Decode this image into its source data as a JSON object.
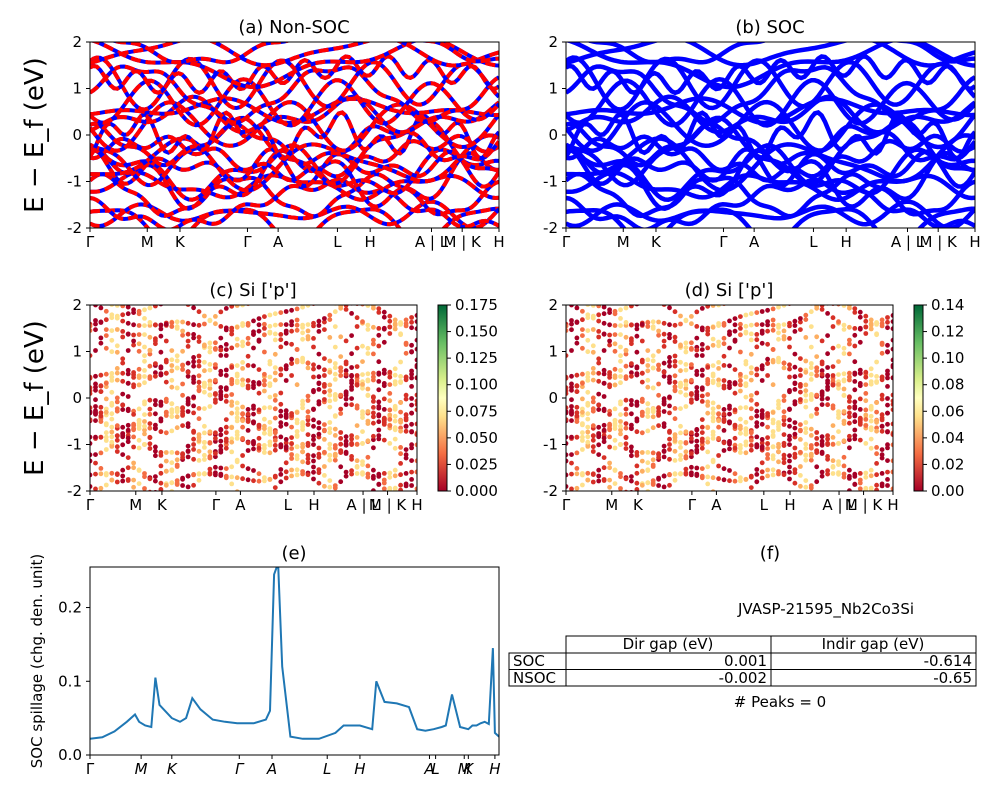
{
  "chart_data": [
    {
      "type": "line",
      "title": "(a) Non-SOC",
      "ylabel": "E − E_f (eV)",
      "ylim": [
        -2,
        2
      ],
      "yticks": [
        -2,
        -1,
        0,
        1,
        2
      ],
      "xtick_labels": [
        "Γ",
        "M",
        "K",
        "Γ",
        "A",
        "L",
        "H",
        "A | L",
        "M | K",
        "H"
      ],
      "series": [
        {
          "color": "#ff0000",
          "values": "spin-up bands, dense multi-band structure in [-2, 2] eV"
        },
        {
          "color": "#0000ff",
          "values": "spin-down bands, overlapping spin-up (dashed)"
        }
      ]
    },
    {
      "type": "line",
      "title": "(b) SOC",
      "ylim": [
        -2,
        2
      ],
      "yticks": [
        -2,
        -1,
        0,
        1,
        2
      ],
      "xtick_labels": [
        "Γ",
        "M",
        "K",
        "Γ",
        "A",
        "L",
        "H",
        "A | L",
        "M | K",
        "H"
      ],
      "series": [
        {
          "color": "#0000ff",
          "values": "SOC bands, dense multi-band structure in [-2, 2] eV"
        }
      ]
    },
    {
      "type": "scatter",
      "title": "(c)  Si ['p']",
      "ylabel": "E − E_f (eV)",
      "ylim": [
        -2,
        2
      ],
      "yticks": [
        -2,
        -1,
        0,
        1,
        2
      ],
      "xtick_labels": [
        "Γ",
        "M",
        "K",
        "Γ",
        "A",
        "L",
        "H",
        "A | L",
        "M | K",
        "H"
      ],
      "colorbar": {
        "min": 0.0,
        "max": 0.175,
        "ticks": [
          "0.000",
          "0.025",
          "0.050",
          "0.075",
          "0.100",
          "0.125",
          "0.150",
          "0.175"
        ],
        "colormap": "RdYlGn"
      }
    },
    {
      "type": "scatter",
      "title": "(d) Si ['p']",
      "ylim": [
        -2,
        2
      ],
      "yticks": [
        -2,
        -1,
        0,
        1,
        2
      ],
      "xtick_labels": [
        "Γ",
        "M",
        "K",
        "Γ",
        "A",
        "L",
        "H",
        "A | L",
        "M | K",
        "H"
      ],
      "colorbar": {
        "min": 0.0,
        "max": 0.14,
        "ticks": [
          "0.00",
          "0.02",
          "0.04",
          "0.06",
          "0.08",
          "0.10",
          "0.12",
          "0.14"
        ],
        "colormap": "RdYlGn"
      }
    },
    {
      "type": "line",
      "title": "(e)",
      "ylabel": "SOC spillage (chg. den. unit)",
      "ylim": [
        0,
        0.255
      ],
      "yticks": [
        "0.0",
        "0.1",
        "0.2"
      ],
      "xtick_labels": [
        "Γ",
        "M",
        "K",
        "Γ",
        "A",
        "L",
        "H",
        "A",
        "L",
        "M",
        "K",
        "H"
      ],
      "x": [
        0,
        0.03,
        0.06,
        0.09,
        0.11,
        0.12,
        0.135,
        0.15,
        0.16,
        0.17,
        0.2,
        0.22,
        0.235,
        0.25,
        0.27,
        0.3,
        0.33,
        0.36,
        0.4,
        0.43,
        0.44,
        0.45,
        0.46,
        0.47,
        0.49,
        0.52,
        0.56,
        0.6,
        0.62,
        0.66,
        0.69,
        0.7,
        0.72,
        0.75,
        0.78,
        0.8,
        0.82,
        0.84,
        0.86,
        0.87,
        0.885,
        0.905,
        0.925,
        0.935,
        0.945,
        0.955,
        0.965,
        0.975,
        0.985,
        0.99,
        1.0
      ],
      "values": [
        0.022,
        0.024,
        0.032,
        0.045,
        0.055,
        0.045,
        0.04,
        0.038,
        0.105,
        0.068,
        0.05,
        0.045,
        0.05,
        0.077,
        0.062,
        0.048,
        0.045,
        0.043,
        0.043,
        0.048,
        0.06,
        0.245,
        0.26,
        0.12,
        0.025,
        0.022,
        0.022,
        0.03,
        0.04,
        0.04,
        0.035,
        0.1,
        0.072,
        0.07,
        0.065,
        0.035,
        0.033,
        0.035,
        0.038,
        0.04,
        0.082,
        0.038,
        0.035,
        0.04,
        0.04,
        0.043,
        0.045,
        0.042,
        0.145,
        0.03,
        0.025
      ]
    },
    {
      "type": "table",
      "title": "(f)",
      "subtitle": "JVASP-21595_Nb2Co3Si",
      "columns": [
        "Dir gap (eV)",
        "Indir gap (eV)"
      ],
      "rows": [
        {
          "label": "SOC",
          "values": [
            "0.001",
            "-0.614"
          ]
        },
        {
          "label": "NSOC",
          "values": [
            "-0.002",
            "-0.65"
          ]
        }
      ],
      "footer": "# Peaks = 0"
    }
  ]
}
